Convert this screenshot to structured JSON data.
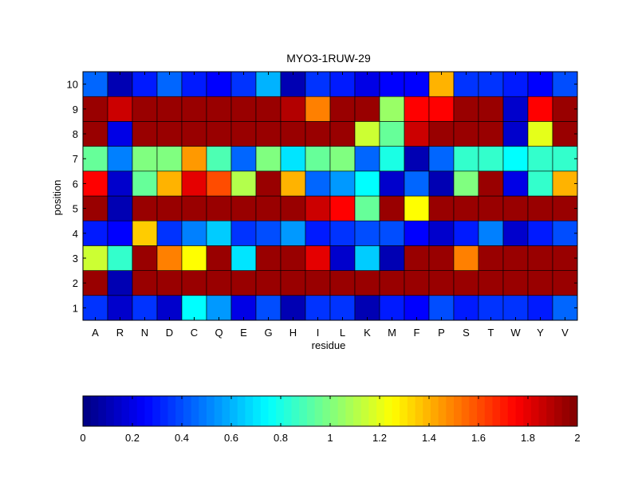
{
  "chart_data": {
    "type": "heatmap",
    "title": "MYO3-1RUW-29",
    "xlabel": "residue",
    "ylabel": "position",
    "x_categories": [
      "A",
      "R",
      "N",
      "D",
      "C",
      "Q",
      "E",
      "G",
      "H",
      "I",
      "L",
      "K",
      "M",
      "F",
      "P",
      "S",
      "T",
      "W",
      "Y",
      "V"
    ],
    "y_categories": [
      "1",
      "2",
      "3",
      "4",
      "5",
      "6",
      "7",
      "8",
      "9",
      "10"
    ],
    "colorbar": {
      "colormap": "jet",
      "range": [
        0,
        2
      ],
      "ticks": [
        0,
        0.2,
        0.4,
        0.6,
        0.8,
        1,
        1.2,
        1.4,
        1.6,
        1.8,
        2
      ],
      "tick_labels": [
        "0",
        "0.2",
        "0.4",
        "0.6",
        "0.8",
        "1",
        "1.2",
        "1.4",
        "1.6",
        "1.8",
        "2"
      ],
      "placement": "bottom"
    },
    "grid": false,
    "values": [
      [
        0.35,
        0.15,
        0.35,
        0.15,
        0.75,
        0.55,
        0.2,
        0.4,
        0.1,
        0.35,
        0.35,
        0.1,
        0.3,
        0.25,
        0.4,
        0.3,
        0.35,
        0.35,
        0.3,
        0.45
      ],
      [
        1.95,
        0.1,
        1.95,
        1.95,
        1.95,
        1.95,
        1.95,
        1.95,
        1.95,
        1.95,
        1.95,
        1.95,
        1.95,
        1.95,
        1.95,
        1.95,
        1.95,
        1.95,
        1.95,
        1.95
      ],
      [
        1.15,
        0.85,
        1.95,
        1.5,
        1.25,
        1.95,
        0.7,
        1.95,
        1.95,
        1.8,
        0.15,
        0.65,
        0.1,
        1.95,
        1.95,
        1.5,
        1.95,
        1.95,
        1.95,
        1.95
      ],
      [
        0.3,
        0.25,
        1.35,
        0.35,
        0.5,
        0.65,
        0.35,
        0.4,
        0.55,
        0.3,
        0.35,
        0.4,
        0.4,
        0.25,
        0.15,
        0.3,
        0.5,
        0.15,
        0.3,
        0.4
      ],
      [
        1.95,
        0.1,
        1.95,
        1.95,
        1.95,
        1.95,
        1.95,
        1.95,
        1.95,
        1.85,
        1.75,
        0.95,
        1.95,
        1.25,
        1.95,
        1.95,
        1.95,
        1.95,
        1.95,
        1.95
      ],
      [
        1.75,
        0.15,
        0.95,
        1.4,
        1.8,
        1.6,
        1.1,
        1.95,
        1.4,
        0.45,
        0.55,
        0.75,
        0.15,
        0.45,
        0.1,
        1.0,
        1.95,
        0.2,
        0.85,
        1.4
      ],
      [
        0.95,
        0.5,
        1.0,
        1.0,
        1.45,
        0.9,
        0.45,
        1.0,
        0.7,
        0.95,
        1.0,
        0.45,
        0.8,
        0.1,
        0.45,
        0.85,
        0.85,
        0.75,
        0.85,
        0.85
      ],
      [
        1.95,
        0.2,
        1.95,
        1.95,
        1.95,
        1.95,
        1.95,
        1.95,
        1.95,
        1.95,
        1.95,
        1.15,
        0.95,
        1.85,
        1.95,
        1.95,
        1.95,
        0.15,
        1.2,
        1.95
      ],
      [
        1.95,
        1.85,
        1.95,
        1.95,
        1.95,
        1.95,
        1.95,
        1.95,
        1.9,
        1.5,
        1.95,
        1.95,
        1.05,
        1.75,
        1.75,
        1.95,
        1.95,
        0.15,
        1.75,
        1.95
      ],
      [
        0.45,
        0.1,
        0.3,
        0.45,
        0.3,
        0.25,
        0.35,
        0.6,
        0.1,
        0.35,
        0.3,
        0.2,
        0.25,
        0.25,
        1.4,
        0.35,
        0.35,
        0.3,
        0.25,
        0.4
      ]
    ]
  }
}
